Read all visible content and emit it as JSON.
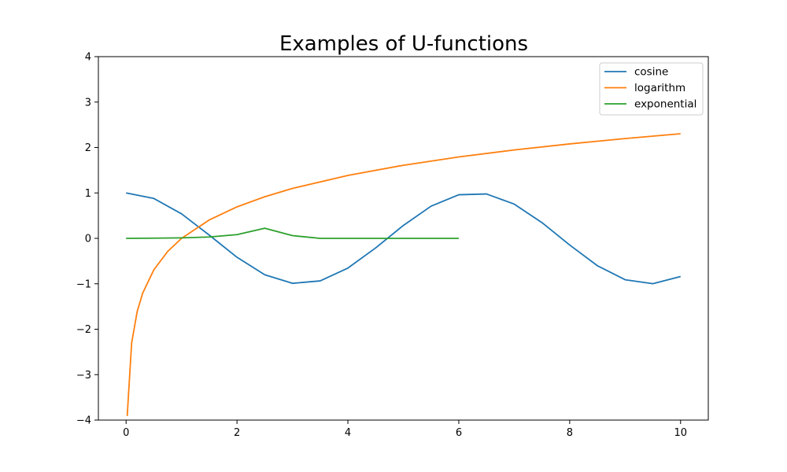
{
  "chart_data": {
    "type": "line",
    "title": "Examples of U-functions",
    "xlim": [
      -0.5,
      10.5
    ],
    "ylim": [
      -4,
      4
    ],
    "xticks": [
      0,
      2,
      4,
      6,
      8,
      10
    ],
    "yticks": [
      -4,
      -3,
      -2,
      -1,
      0,
      1,
      2,
      3,
      4
    ],
    "xtick_labels": [
      "0",
      "2",
      "4",
      "6",
      "8",
      "10"
    ],
    "ytick_labels": [
      "−4",
      "−3",
      "−2",
      "−1",
      "0",
      "1",
      "2",
      "3",
      "4"
    ],
    "grid": false,
    "legend_position": "top-right",
    "series": [
      {
        "name": "cosine",
        "color": "#1f77b4",
        "x": [
          0,
          0.5,
          1,
          1.5,
          2,
          2.5,
          3,
          3.5,
          4,
          4.5,
          5,
          5.5,
          6,
          6.5,
          7,
          7.5,
          8,
          8.5,
          9,
          9.5,
          10
        ],
        "y": [
          1.0,
          0.878,
          0.54,
          0.071,
          -0.416,
          -0.801,
          -0.99,
          -0.936,
          -0.654,
          -0.211,
          0.284,
          0.709,
          0.96,
          0.977,
          0.754,
          0.347,
          -0.146,
          -0.602,
          -0.911,
          -0.997,
          -0.839
        ]
      },
      {
        "name": "logarithm",
        "color": "#ff7f0e",
        "x": [
          0.02,
          0.1,
          0.2,
          0.3,
          0.5,
          0.75,
          1,
          1.5,
          2,
          2.5,
          3,
          4,
          5,
          6,
          7,
          8,
          9,
          10
        ],
        "y": [
          -3.91,
          -2.303,
          -1.609,
          -1.204,
          -0.693,
          -0.288,
          0.0,
          0.405,
          0.693,
          0.916,
          1.099,
          1.386,
          1.609,
          1.792,
          1.946,
          2.079,
          2.197,
          2.303
        ]
      },
      {
        "name": "exponential",
        "color": "#2ca02c",
        "x": [
          0,
          0.5,
          1,
          1.5,
          2,
          2.5,
          3,
          3.5,
          4,
          4.25,
          4.5,
          4.75,
          5,
          5.25,
          5.5,
          5.75,
          6
        ],
        "y": [
          0.0,
          0.004,
          0.011,
          0.03,
          0.082,
          0.222,
          0.0604,
          0.0,
          0.0,
          0.0,
          0.0,
          0.0,
          0.0,
          0.0,
          0.0,
          0.0,
          0.0
        ]
      }
    ]
  }
}
